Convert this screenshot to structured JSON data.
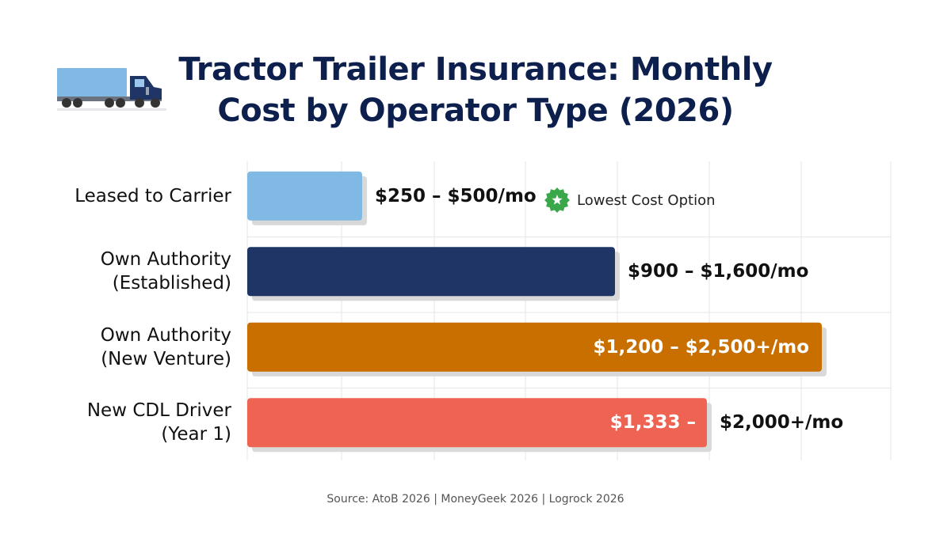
{
  "title_lines": [
    "Tractor Trailer Insurance: Monthly",
    "Cost by Operator Type (2026)"
  ],
  "badge": {
    "text": "Lowest Cost Option",
    "color": "#3aa84a"
  },
  "source": "Source: AtoB 2026 | MoneyGeek 2026 | Logrock 2026",
  "chart_data": {
    "type": "bar",
    "orientation": "horizontal",
    "title": "Tractor Trailer Insurance: Monthly Cost by Operator Type (2026)",
    "grid": true,
    "categories": [
      [
        "Leased to Carrier"
      ],
      [
        "Own Authority",
        "(Established)"
      ],
      [
        "Own Authority",
        "(New Venture)"
      ],
      [
        "New CDL Driver",
        "(Year 1)"
      ]
    ],
    "ranges": [
      {
        "low": 250,
        "high": 500,
        "label": "$250 – $500/mo",
        "color": "#80b9e3",
        "label_position": "outside"
      },
      {
        "low": 900,
        "high": 1600,
        "label": "$900 – $1,600/mo",
        "color": "#1f3566",
        "label_position": "outside"
      },
      {
        "low": 1200,
        "high": 2500,
        "label": "$1,200 – $2,500+/mo",
        "color": "#c96f00",
        "label_position": "inside"
      },
      {
        "low": 1333,
        "high": 2000,
        "label_inside": "$1,333 –",
        "label_outside": "$2,000+/mo",
        "color": "#ee6352",
        "label_position": "split"
      }
    ],
    "xlim": [
      0,
      2800
    ]
  }
}
